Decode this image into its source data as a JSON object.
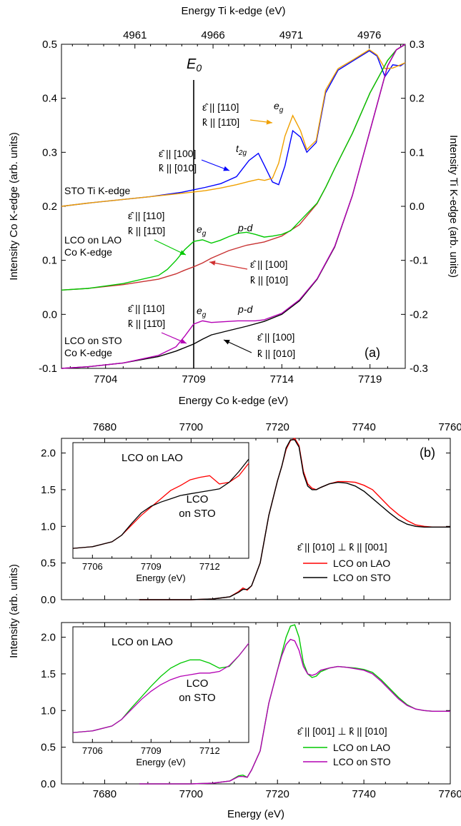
{
  "chart_data": [
    {
      "id": "a",
      "type": "line",
      "panel_label": "(a)",
      "xlabel_bottom": "Energy Co k-edge (eV)",
      "xlabel_top": "Energy Ti k-edge (eV)",
      "ylabel_left": "Intensity Co K-edge (arb. units)",
      "ylabel_right": "Intensity Ti K-edge (arb. units)",
      "xlim_bottom": [
        7701.5,
        7721.0
      ],
      "xticks_bottom": [
        7704,
        7709,
        7714,
        7719
      ],
      "xlim_top": [
        4956.3,
        4978.3
      ],
      "xticks_top": [
        4961,
        4966,
        4971,
        4976
      ],
      "ylim_left": [
        -0.1,
        0.5
      ],
      "yticks_left": [
        "-0.1",
        "0.0",
        "0.1",
        "0.2",
        "0.3",
        "0.4",
        "0.5"
      ],
      "ylim_right": [
        -0.3,
        0.3
      ],
      "yticks_right": [
        "-0.3",
        "-0.2",
        "-0.1",
        "0.0",
        "0.1",
        "0.2",
        "0.3"
      ],
      "e0_label": "E",
      "e0_sub": "0",
      "e0_x": 7709.0,
      "series": [
        {
          "group": "STO Ti K-edge",
          "axis": "right",
          "color": "#0000ff",
          "x": [
            4956.3,
            4958,
            4960,
            4962,
            4964,
            4965.5,
            4966.5,
            4967.5,
            4968.3,
            4968.9,
            4969.3,
            4969.8,
            4970.2,
            4970.6,
            4971.1,
            4971.6,
            4972.0,
            4972.6,
            4973.2,
            4974.0,
            4975.0,
            4976.0,
            4976.5,
            4977.0,
            4977.5,
            4978.0,
            4978.3
          ],
          "y": [
            0.0,
            0.006,
            0.012,
            0.018,
            0.026,
            0.035,
            0.042,
            0.055,
            0.085,
            0.098,
            0.075,
            0.045,
            0.04,
            0.075,
            0.14,
            0.128,
            0.1,
            0.118,
            0.21,
            0.252,
            0.27,
            0.288,
            0.278,
            0.24,
            0.262,
            0.26,
            0.266
          ]
        },
        {
          "group": "STO Ti K-edge",
          "axis": "right",
          "color": "#f0a000",
          "x": [
            4956.3,
            4958,
            4960,
            4962,
            4964,
            4965.5,
            4966.5,
            4967.5,
            4968.3,
            4968.9,
            4969.3,
            4969.8,
            4970.2,
            4970.6,
            4971.1,
            4971.6,
            4972.0,
            4972.6,
            4973.2,
            4974.0,
            4975.0,
            4976.0,
            4976.5,
            4977.0,
            4977.5,
            4978.0,
            4978.3
          ],
          "y": [
            0.0,
            0.006,
            0.012,
            0.018,
            0.024,
            0.029,
            0.034,
            0.04,
            0.046,
            0.05,
            0.048,
            0.052,
            0.08,
            0.13,
            0.168,
            0.14,
            0.105,
            0.122,
            0.215,
            0.255,
            0.272,
            0.29,
            0.28,
            0.255,
            0.256,
            0.262,
            0.266
          ]
        },
        {
          "group": "LCO on LAO Co K-edge",
          "axis": "left",
          "color": "#c83232",
          "x": [
            7701.5,
            7703,
            7705,
            7707,
            7708,
            7708.5,
            7709,
            7709.5,
            7710,
            7711,
            7712,
            7713,
            7714,
            7715,
            7716,
            7716.5,
            7717,
            7718,
            7719,
            7719.5,
            7720,
            7720.5,
            7721
          ],
          "y": [
            0.045,
            0.048,
            0.055,
            0.065,
            0.075,
            0.082,
            0.088,
            0.095,
            0.104,
            0.118,
            0.128,
            0.134,
            0.145,
            0.166,
            0.205,
            0.236,
            0.27,
            0.335,
            0.41,
            0.44,
            0.47,
            0.49,
            0.5
          ]
        },
        {
          "group": "LCO on LAO Co K-edge",
          "axis": "left",
          "color": "#00c800",
          "x": [
            7701.5,
            7703,
            7705,
            7707,
            7707.5,
            7708,
            7708.5,
            7709,
            7709.5,
            7710,
            7710.5,
            7711,
            7711.5,
            7712,
            7712.5,
            7713,
            7713.5,
            7714,
            7714.5,
            7715,
            7716,
            7716.5,
            7717,
            7718,
            7719,
            7719.5,
            7720,
            7720.5,
            7721
          ],
          "y": [
            0.045,
            0.048,
            0.057,
            0.072,
            0.083,
            0.1,
            0.12,
            0.135,
            0.138,
            0.132,
            0.137,
            0.144,
            0.15,
            0.152,
            0.148,
            0.143,
            0.145,
            0.148,
            0.155,
            0.172,
            0.206,
            0.236,
            0.27,
            0.335,
            0.41,
            0.44,
            0.47,
            0.49,
            0.5
          ]
        },
        {
          "group": "LCO on STO Co K-edge",
          "axis": "left",
          "color": "#000000",
          "x": [
            7701.5,
            7703,
            7705,
            7707,
            7708,
            7709,
            7709.5,
            7710,
            7711,
            7712,
            7713,
            7714,
            7715,
            7716,
            7717,
            7718,
            7719,
            7719.5,
            7720,
            7720.5,
            7721
          ],
          "y": [
            -0.1,
            -0.097,
            -0.09,
            -0.078,
            -0.068,
            -0.055,
            -0.046,
            -0.038,
            -0.03,
            -0.022,
            -0.013,
            0.0,
            0.025,
            0.065,
            0.125,
            0.22,
            0.34,
            0.4,
            0.46,
            0.49,
            0.5
          ]
        },
        {
          "group": "LCO on STO Co K-edge",
          "axis": "left",
          "color": "#b400b4",
          "x": [
            7701.5,
            7703,
            7705,
            7707,
            7708,
            7708.5,
            7709,
            7709.5,
            7710,
            7710.5,
            7711,
            7711.5,
            7712,
            7712.5,
            7713,
            7714,
            7715,
            7716,
            7717,
            7718,
            7719,
            7719.5,
            7720,
            7720.5,
            7721
          ],
          "y": [
            -0.1,
            -0.097,
            -0.09,
            -0.076,
            -0.06,
            -0.04,
            -0.018,
            -0.012,
            -0.015,
            -0.014,
            -0.013,
            -0.012,
            -0.012,
            -0.012,
            -0.01,
            0.002,
            0.027,
            0.066,
            0.126,
            0.22,
            0.34,
            0.4,
            0.46,
            0.49,
            0.5
          ]
        }
      ],
      "labels": {
        "sto_ti": "STO Ti K-edge",
        "lco_lao": "LCO on LAO",
        "lco_sto": "LCO on STO",
        "co_kedge": "Co K-edge",
        "eg": "e",
        "eg_sub": "g",
        "t2g": "t",
        "t2g_sub": "2g",
        "pd": "p-d",
        "eps110": "ε̂ || [110]",
        "k1m10": "k̂ || [11̄0]",
        "eps100": "ε̂ || [100]",
        "k010": "k̂ || [010]"
      }
    },
    {
      "id": "b-top",
      "type": "line",
      "panel_label": "(b)",
      "xlim": [
        7670,
        7760
      ],
      "xticks": [
        7680,
        7700,
        7720,
        7740,
        7760
      ],
      "ylim": [
        0,
        2.2
      ],
      "yticks": [
        "0.0",
        "0.5",
        "1.0",
        "1.5",
        "2.0"
      ],
      "legend_title": "ε̂ || [010] ⊥ k̂ || [001]",
      "series": [
        {
          "name": "LCO on LAO",
          "color": "#ff0000",
          "x": [
            7688,
            7700,
            7705,
            7709,
            7711,
            7712,
            7713,
            7714,
            7716,
            7718,
            7720,
            7721,
            7722,
            7723,
            7724,
            7725,
            7726,
            7727,
            7728,
            7729,
            7730,
            7732,
            7734,
            7736,
            7738,
            7740,
            7742,
            7744,
            7746,
            7748,
            7750,
            7752,
            7754,
            7756,
            7758,
            7760
          ],
          "y": [
            0.0,
            0.0,
            0.01,
            0.04,
            0.11,
            0.16,
            0.13,
            0.19,
            0.5,
            1.15,
            1.62,
            1.82,
            2.05,
            2.17,
            2.2,
            2.1,
            1.75,
            1.58,
            1.52,
            1.5,
            1.53,
            1.58,
            1.61,
            1.61,
            1.6,
            1.56,
            1.5,
            1.38,
            1.26,
            1.16,
            1.08,
            1.02,
            1.0,
            0.99,
            0.99,
            0.99
          ]
        },
        {
          "name": "LCO on STO",
          "color": "#000000",
          "x": [
            7688,
            7700,
            7705,
            7709,
            7711,
            7712,
            7713,
            7714,
            7716,
            7718,
            7720,
            7721,
            7722,
            7723,
            7724,
            7725,
            7726,
            7727,
            7728,
            7729,
            7730,
            7732,
            7734,
            7736,
            7738,
            7740,
            7742,
            7744,
            7746,
            7748,
            7750,
            7752,
            7754,
            7756,
            7758,
            7760
          ],
          "y": [
            0.0,
            0.0,
            0.01,
            0.04,
            0.1,
            0.14,
            0.14,
            0.19,
            0.5,
            1.15,
            1.62,
            1.82,
            2.07,
            2.18,
            2.18,
            2.08,
            1.72,
            1.55,
            1.5,
            1.5,
            1.53,
            1.58,
            1.6,
            1.59,
            1.55,
            1.48,
            1.38,
            1.28,
            1.18,
            1.09,
            1.03,
            1.0,
            0.99,
            0.99,
            0.99,
            0.99
          ]
        }
      ],
      "inset": {
        "xlabel": "Energy (eV)",
        "xlim": [
          7705,
          7714
        ],
        "xticks": [
          7706,
          7709,
          7712
        ],
        "ylim": [
          0,
          1.4
        ],
        "labels": {
          "lao": "LCO on LAO",
          "sto_line1": "LCO",
          "sto_line2": "on STO"
        },
        "series": [
          {
            "name": "LCO on LAO",
            "color": "#ff0000",
            "x": [
              7705,
              7706,
              7707,
              7707.5,
              7708,
              7708.5,
              7709,
              7709.5,
              7710,
              7710.5,
              7711,
              7711.5,
              7712,
              7712.5,
              7713,
              7713.5,
              7714
            ],
            "y": [
              0.12,
              0.14,
              0.2,
              0.28,
              0.4,
              0.52,
              0.62,
              0.72,
              0.82,
              0.88,
              0.95,
              0.98,
              1.0,
              0.9,
              0.92,
              1.0,
              1.15
            ]
          },
          {
            "name": "LCO on STO",
            "color": "#000000",
            "x": [
              7705,
              7706,
              7707,
              7707.5,
              7708,
              7708.5,
              7709,
              7709.5,
              7710,
              7710.5,
              7711,
              7711.5,
              7712,
              7712.5,
              7713,
              7713.5,
              7714
            ],
            "y": [
              0.12,
              0.14,
              0.2,
              0.28,
              0.42,
              0.55,
              0.63,
              0.68,
              0.72,
              0.76,
              0.78,
              0.8,
              0.82,
              0.84,
              0.92,
              1.05,
              1.2
            ]
          }
        ]
      }
    },
    {
      "id": "b-bottom",
      "type": "line",
      "xlabel": "Energy (eV)",
      "ylabel": "Intensity (arb. units)",
      "xlim": [
        7670,
        7760
      ],
      "xticks": [
        7680,
        7700,
        7720,
        7740,
        7760
      ],
      "ylim": [
        0,
        2.2
      ],
      "yticks": [
        "0.0",
        "0.5",
        "1.0",
        "1.5",
        "2.0"
      ],
      "legend_title": "ε̂ || [001] ⊥ k̂ || [010]",
      "series": [
        {
          "name": "LCO on LAO",
          "color": "#00c800",
          "x": [
            7688,
            7700,
            7705,
            7709,
            7711,
            7712,
            7713,
            7714,
            7716,
            7718,
            7720,
            7721,
            7722,
            7723,
            7724,
            7725,
            7726,
            7727,
            7728,
            7729,
            7730,
            7732,
            7734,
            7736,
            7738,
            7740,
            7742,
            7744,
            7746,
            7748,
            7750,
            7752,
            7754,
            7756,
            7758,
            7760
          ],
          "y": [
            0.0,
            0.0,
            0.01,
            0.04,
            0.11,
            0.12,
            0.09,
            0.19,
            0.45,
            1.1,
            1.55,
            1.78,
            2.0,
            2.15,
            2.17,
            2.0,
            1.65,
            1.5,
            1.45,
            1.47,
            1.53,
            1.58,
            1.6,
            1.59,
            1.58,
            1.56,
            1.52,
            1.42,
            1.3,
            1.18,
            1.08,
            1.02,
            1.0,
            0.99,
            0.99,
            0.99
          ]
        },
        {
          "name": "LCO on STO",
          "color": "#b400b4",
          "x": [
            7688,
            7700,
            7705,
            7709,
            7711,
            7712,
            7713,
            7714,
            7716,
            7718,
            7720,
            7721,
            7722,
            7723,
            7724,
            7725,
            7726,
            7727,
            7728,
            7729,
            7730,
            7732,
            7734,
            7736,
            7738,
            7740,
            7742,
            7744,
            7746,
            7748,
            7750,
            7752,
            7754,
            7756,
            7758,
            7760
          ],
          "y": [
            0.0,
            0.0,
            0.01,
            0.04,
            0.1,
            0.1,
            0.09,
            0.19,
            0.45,
            1.1,
            1.55,
            1.75,
            1.9,
            1.97,
            1.95,
            1.82,
            1.6,
            1.5,
            1.48,
            1.5,
            1.55,
            1.58,
            1.6,
            1.59,
            1.57,
            1.55,
            1.5,
            1.4,
            1.28,
            1.16,
            1.07,
            1.02,
            1.0,
            0.99,
            0.99,
            0.99
          ]
        }
      ],
      "inset": {
        "xlabel": "Energy (eV)",
        "xlim": [
          7705,
          7714
        ],
        "xticks": [
          7706,
          7709,
          7712
        ],
        "ylim": [
          0,
          1.4
        ],
        "labels": {
          "lao": "LCO on LAO",
          "sto_line1": "LCO",
          "sto_line2": "on STO"
        },
        "series": [
          {
            "name": "LCO on LAO",
            "color": "#00c800",
            "x": [
              7705,
              7706,
              7707,
              7707.5,
              7708,
              7708.5,
              7709,
              7709.5,
              7710,
              7710.5,
              7711,
              7711.5,
              7712,
              7712.5,
              7713,
              7713.5,
              7714
            ],
            "y": [
              0.12,
              0.14,
              0.2,
              0.28,
              0.42,
              0.55,
              0.68,
              0.8,
              0.9,
              0.96,
              1.0,
              1.0,
              0.96,
              0.9,
              0.92,
              1.05,
              1.2
            ]
          },
          {
            "name": "LCO on STO",
            "color": "#b400b4",
            "x": [
              7705,
              7706,
              7707,
              7707.5,
              7708,
              7708.5,
              7709,
              7709.5,
              7710,
              7710.5,
              7711,
              7711.5,
              7712,
              7712.5,
              7713,
              7713.5,
              7714
            ],
            "y": [
              0.12,
              0.14,
              0.2,
              0.28,
              0.4,
              0.52,
              0.62,
              0.7,
              0.76,
              0.8,
              0.82,
              0.84,
              0.84,
              0.86,
              0.93,
              1.05,
              1.2
            ]
          }
        ]
      }
    }
  ]
}
